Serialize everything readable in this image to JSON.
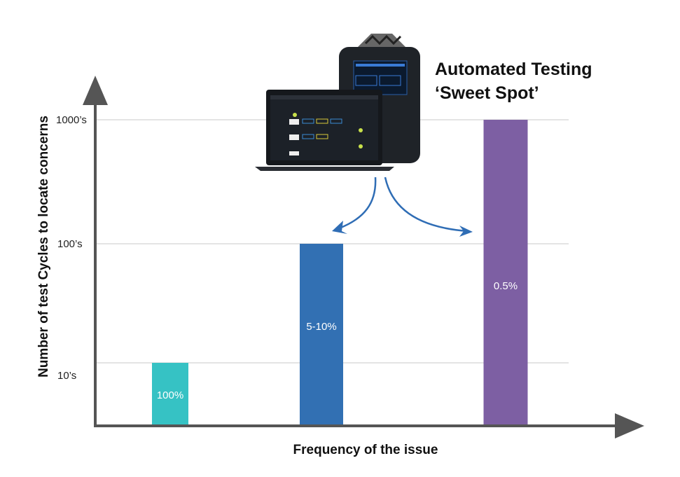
{
  "chart_data": {
    "type": "bar",
    "title": "",
    "xlabel": "Frequency of the issue",
    "ylabel": "Number of test Cycles to locate concerns",
    "yscale": "log",
    "ylim": [
      3,
      2200
    ],
    "yticks": [
      10,
      100,
      1000
    ],
    "ytick_labels": [
      "10’s",
      "100’s",
      "1000’s"
    ],
    "grid": true,
    "categories": [
      "100%",
      "5-10%",
      "0.5%"
    ],
    "values": [
      10,
      100,
      1000
    ],
    "data_labels": [
      "100%",
      "5-10%",
      "0.5%"
    ],
    "colors": [
      "#36c2c4",
      "#3270b3",
      "#7d5fa3"
    ],
    "annotation": {
      "line1": "Automated Testing",
      "line2": "‘Sweet Spot’",
      "arrow_color": "#2f6db5",
      "image": "laptop-and-test-instrument"
    }
  }
}
